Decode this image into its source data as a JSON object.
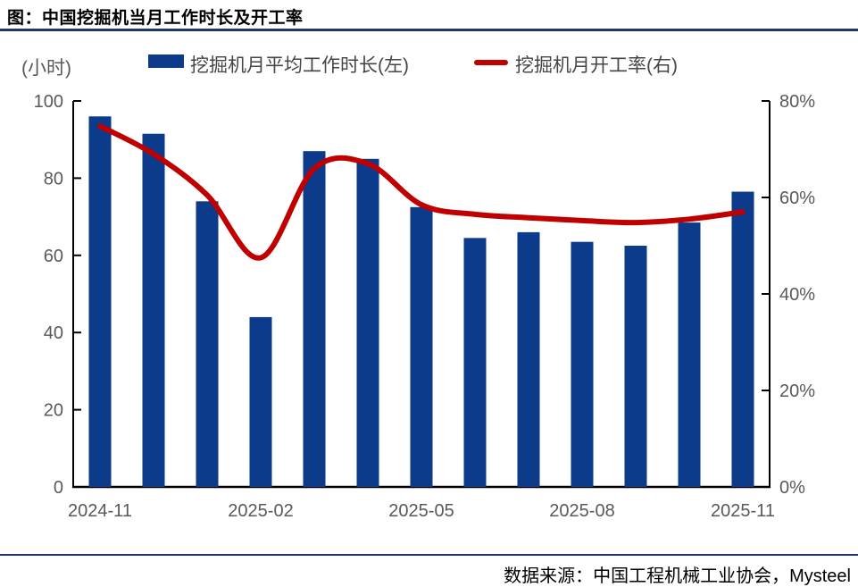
{
  "header": {
    "title": "图：中国挖掘机当月工作时长及开工率"
  },
  "legend": {
    "unit_label": "(小时)",
    "bar_label": "挖掘机月平均工作时长(左)",
    "line_label": "挖掘机月开工率(右)"
  },
  "footer": {
    "source": "数据来源：中国工程机械工业协会，Mysteel"
  },
  "colors": {
    "bar": "#0d3b8c",
    "line": "#c00000",
    "rule": "#1f3864",
    "axis": "#000000",
    "tick_text": "#595959"
  },
  "chart_data": {
    "type": "bar",
    "title": "图：中国挖掘机当月工作时长及开工率",
    "categories": [
      "2024-11",
      "2024-12",
      "2025-01",
      "2025-02",
      "2025-03",
      "2025-04",
      "2025-05",
      "2025-06",
      "2025-07",
      "2025-08",
      "2025-09",
      "2025-10",
      "2025-11"
    ],
    "series": [
      {
        "name": "挖掘机月平均工作时长(左)",
        "type": "bar",
        "axis": "left",
        "values": [
          96,
          91.5,
          74,
          44,
          87,
          85,
          72.5,
          64.5,
          66,
          63.5,
          62.5,
          68.5,
          76.5
        ]
      },
      {
        "name": "挖掘机月开工率(右)",
        "type": "line",
        "axis": "right",
        "values": [
          74.8,
          69,
          60.5,
          47.5,
          66,
          67,
          58.5,
          56.5,
          55.8,
          55.2,
          54.8,
          55.5,
          57
        ]
      }
    ],
    "left_axis": {
      "label": "(小时)",
      "min": 0,
      "max": 100,
      "ticks": [
        0,
        20,
        40,
        60,
        80,
        100
      ]
    },
    "right_axis": {
      "min": 0,
      "max": 80,
      "ticks": [
        0,
        20,
        40,
        60,
        80
      ],
      "suffix": "%"
    },
    "x_tick_labels": [
      "2024-11",
      "2025-02",
      "2025-05",
      "2025-08",
      "2025-11"
    ],
    "x_tick_indices": [
      0,
      3,
      6,
      9,
      12
    ],
    "grid": false,
    "legend_position": "top"
  }
}
